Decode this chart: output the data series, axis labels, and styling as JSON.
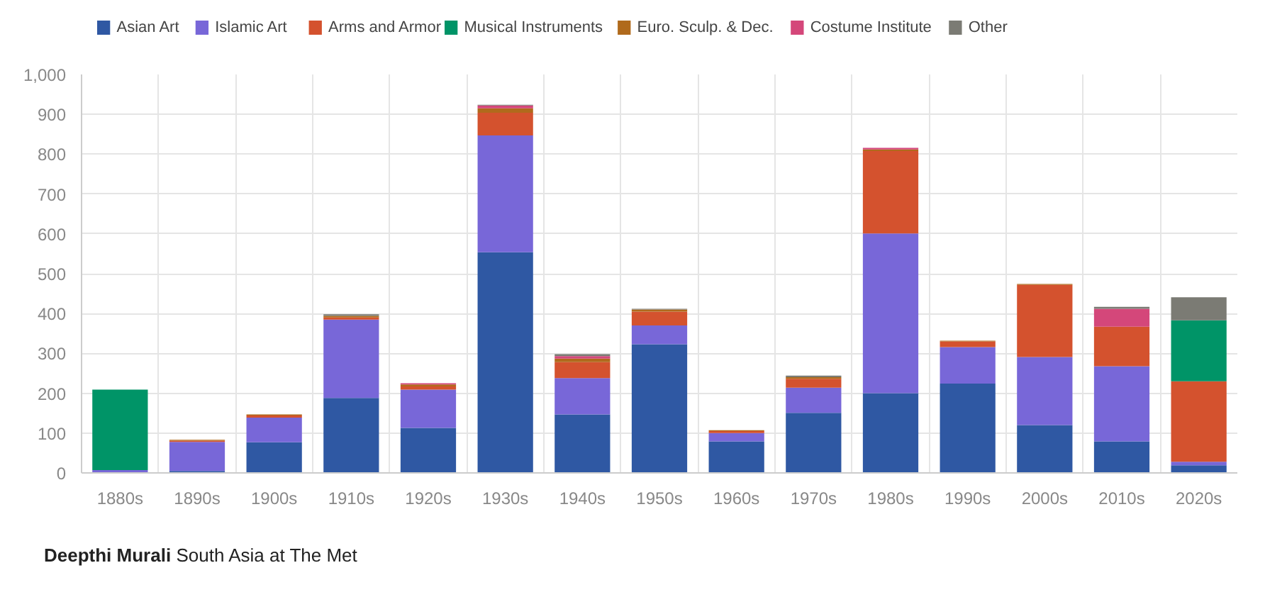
{
  "chart_data": {
    "type": "bar",
    "stacked": true,
    "categories": [
      "1880s",
      "1890s",
      "1900s",
      "1910s",
      "1920s",
      "1930s",
      "1940s",
      "1950s",
      "1960s",
      "1970s",
      "1980s",
      "1990s",
      "2000s",
      "2010s",
      "2020s"
    ],
    "series": [
      {
        "name": "Asian Art",
        "color": "#2f58a3",
        "values": [
          2,
          5,
          77,
          188,
          113,
          554,
          147,
          323,
          79,
          151,
          200,
          224,
          120,
          79,
          19
        ]
      },
      {
        "name": "Islamic Art",
        "color": "#7867d8",
        "values": [
          5,
          73,
          62,
          197,
          96,
          293,
          91,
          47,
          21,
          63,
          401,
          92,
          171,
          189,
          9
        ]
      },
      {
        "name": "Arms and Armor",
        "color": "#d4522e",
        "values": [
          0,
          3,
          5,
          5,
          8,
          57,
          40,
          35,
          5,
          22,
          207,
          14,
          181,
          99,
          202
        ]
      },
      {
        "name": "Musical Instruments",
        "color": "#009467",
        "values": [
          202,
          0,
          0,
          0,
          0,
          0,
          0,
          0,
          0,
          0,
          0,
          0,
          0,
          0,
          153
        ]
      },
      {
        "name": "Euro. Sculp. & Dec.",
        "color": "#b06a1c",
        "values": [
          0,
          2,
          3,
          4,
          5,
          11,
          9,
          5,
          2,
          4,
          4,
          2,
          2,
          0,
          0
        ]
      },
      {
        "name": "Costume Institute",
        "color": "#d4477a",
        "values": [
          0,
          0,
          0,
          0,
          3,
          7,
          6,
          0,
          0,
          0,
          4,
          0,
          0,
          45,
          0
        ]
      },
      {
        "name": "Other",
        "color": "#7b7b74",
        "values": [
          0,
          0,
          0,
          4,
          0,
          2,
          5,
          2,
          0,
          4,
          0,
          0,
          0,
          5,
          58
        ]
      }
    ],
    "ylim": [
      0,
      1000
    ],
    "yticks": [
      0,
      100,
      200,
      300,
      400,
      500,
      600,
      700,
      800,
      900,
      {
        "value": 1000,
        "label": "1,000"
      }
    ],
    "grid": true,
    "legend": "top left",
    "annotations": [
      "Deepthi Murali",
      "South Asia at The Met"
    ]
  }
}
